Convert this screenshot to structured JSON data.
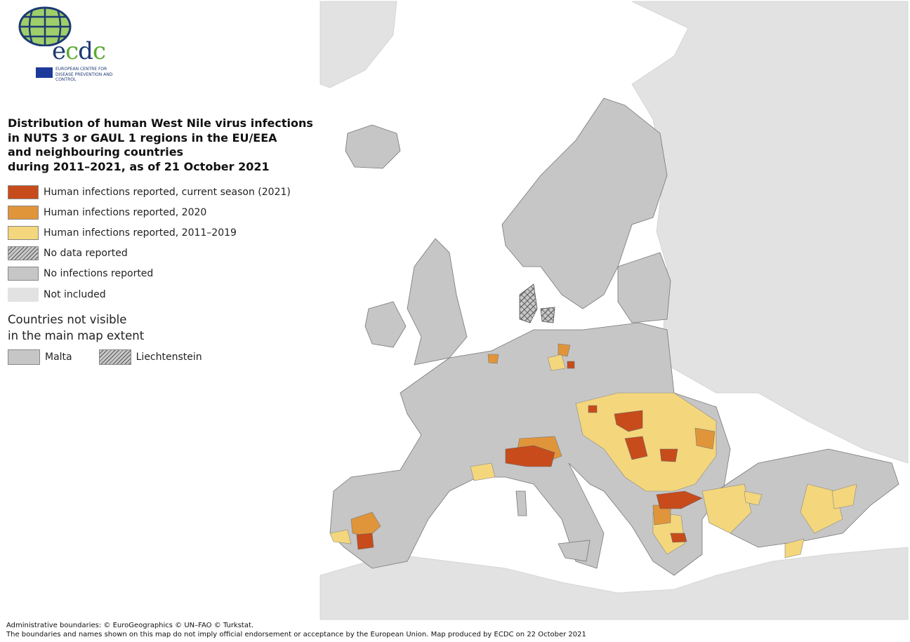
{
  "logo": {
    "name": "ecdc",
    "text": "ECDC",
    "subtitle": "EUROPEAN CENTRE FOR DISEASE PREVENTION AND CONTROL"
  },
  "title": "Distribution of human West Nile virus infections\nin NUTS 3 or GAUL 1 regions in the EU/EEA\nand neighbouring countries\nduring 2011–2021, as of 21 October 2021",
  "legend": [
    {
      "label": "Human infections reported, current season (2021)",
      "color": "#c84b1b",
      "pattern": "solid"
    },
    {
      "label": "Human infections reported, 2020",
      "color": "#e0953a",
      "pattern": "solid"
    },
    {
      "label": "Human infections reported, 2011–2019",
      "color": "#f4d67c",
      "pattern": "solid"
    },
    {
      "label": "No data reported",
      "color": "#c8c8c8",
      "pattern": "hatched"
    },
    {
      "label": "No infections reported",
      "color": "#c6c6c6",
      "pattern": "solid"
    },
    {
      "label": "Not included",
      "color": "#e2e2e2",
      "pattern": "solid"
    }
  ],
  "not_visible": {
    "heading": "Countries not visible\nin the main map extent",
    "items": [
      {
        "label": "Malta",
        "pattern": "solid",
        "color": "#c6c6c6"
      },
      {
        "label": "Liechtenstein",
        "pattern": "hatched",
        "color": "#c8c8c8"
      }
    ]
  },
  "footer": {
    "line1": "Administrative boundaries: © EuroGeographics © UN–FAO © Turkstat.",
    "line2": "The boundaries and names shown on this map do not imply official endorsement or acceptance by the European Union. Map produced by ECDC on 22 October 2021"
  }
}
